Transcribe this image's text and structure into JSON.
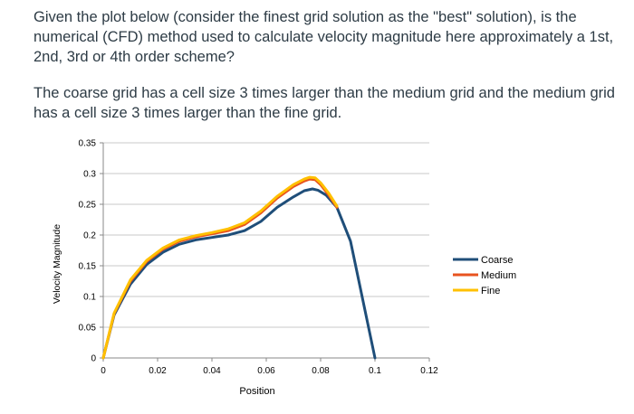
{
  "question": {
    "paragraph1": "Given the plot below (consider the finest grid solution as the \"best\" solution), is the numerical (CFD) method used to calculate velocity magnitude here approximately a 1st, 2nd, 3rd or 4th order scheme?",
    "paragraph2": "The coarse grid has a cell size 3 times larger than the medium grid and the medium grid has a cell size 3 times larger than the fine grid."
  },
  "chart_data": {
    "type": "line",
    "title": "",
    "xlabel": "Position",
    "ylabel": "Velocity Magnitude",
    "xlim": [
      0,
      0.12
    ],
    "ylim": [
      0,
      0.35
    ],
    "x_ticks": [
      "0",
      "0.02",
      "0.04",
      "0.06",
      "0.08",
      "0.1",
      "0.12"
    ],
    "y_ticks": [
      "0",
      "0.05",
      "0.1",
      "0.15",
      "0.2",
      "0.25",
      "0.3",
      "0.35"
    ],
    "grid": "horizontal",
    "legend_position": "right",
    "series": [
      {
        "name": "Coarse",
        "color": "#1f4e79",
        "x": [
          0,
          0.004,
          0.01,
          0.016,
          0.022,
          0.028,
          0.034,
          0.04,
          0.046,
          0.052,
          0.058,
          0.064,
          0.07,
          0.074,
          0.077,
          0.079,
          0.082,
          0.086,
          0.091,
          0.1
        ],
        "y": [
          0,
          0.07,
          0.12,
          0.152,
          0.172,
          0.185,
          0.192,
          0.196,
          0.2,
          0.207,
          0.222,
          0.245,
          0.262,
          0.272,
          0.275,
          0.273,
          0.265,
          0.245,
          0.19,
          0
        ]
      },
      {
        "name": "Medium",
        "color": "#e8531f",
        "x": [
          0,
          0.004,
          0.01,
          0.016,
          0.022,
          0.028,
          0.034,
          0.04,
          0.046,
          0.052,
          0.058,
          0.064,
          0.07,
          0.074,
          0.076,
          0.078,
          0.08,
          0.083,
          0.086
        ],
        "y": [
          0,
          0.072,
          0.125,
          0.157,
          0.177,
          0.19,
          0.197,
          0.202,
          0.207,
          0.217,
          0.236,
          0.26,
          0.279,
          0.288,
          0.291,
          0.29,
          0.282,
          0.265,
          0.245
        ]
      },
      {
        "name": "Fine",
        "color": "#ffc000",
        "x": [
          0,
          0.004,
          0.01,
          0.016,
          0.022,
          0.028,
          0.034,
          0.04,
          0.046,
          0.052,
          0.058,
          0.064,
          0.07,
          0.074,
          0.076,
          0.078,
          0.08,
          0.083,
          0.086
        ],
        "y": [
          0,
          0.073,
          0.127,
          0.159,
          0.179,
          0.192,
          0.199,
          0.204,
          0.21,
          0.22,
          0.239,
          0.263,
          0.282,
          0.291,
          0.294,
          0.293,
          0.285,
          0.268,
          0.247
        ]
      }
    ]
  }
}
